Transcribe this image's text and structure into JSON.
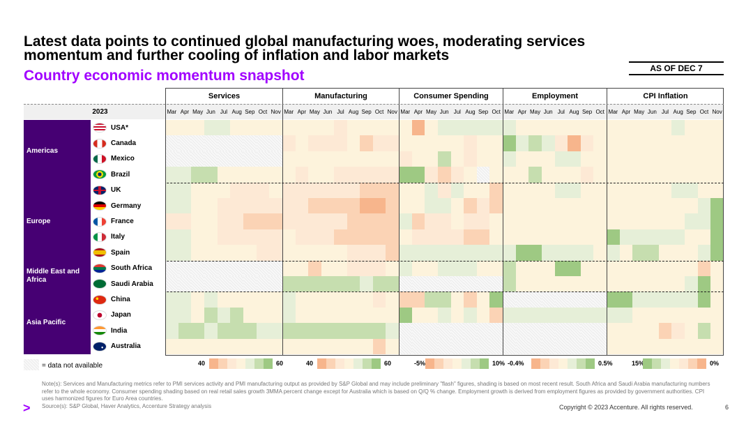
{
  "title": "Latest data points to continued global manufacturing woes, moderating services momentum and further cooling of inflation and labor markets",
  "subtitle": "Country economic momentum snapshot",
  "as_of": "AS OF DEC 7",
  "year_label": "2023",
  "sections": [
    {
      "name": "Services",
      "months": [
        "Mar",
        "Apr",
        "May",
        "Jun",
        "Jul",
        "Aug",
        "Sep",
        "Oct",
        "Nov"
      ]
    },
    {
      "name": "Manufacturing",
      "months": [
        "Mar",
        "Apr",
        "May",
        "Jun",
        "Jul",
        "Aug",
        "Sep",
        "Oct",
        "Nov"
      ]
    },
    {
      "name": "Consumer Spending",
      "months": [
        "Mar",
        "Apr",
        "May",
        "Jun",
        "Jul",
        "Aug",
        "Sep",
        "Oct"
      ]
    },
    {
      "name": "Employment",
      "months": [
        "Mar",
        "Apr",
        "May",
        "Jun",
        "Jul",
        "Aug",
        "Sep",
        "Oct"
      ]
    },
    {
      "name": "CPI Inflation",
      "months": [
        "Mar",
        "Apr",
        "May",
        "Jun",
        "Jul",
        "Aug",
        "Sep",
        "Oct",
        "Nov"
      ]
    }
  ],
  "regions": [
    {
      "name": "Americas",
      "rows": 4
    },
    {
      "name": "Europe",
      "rows": 5
    },
    {
      "name": "Middle East and Africa",
      "rows": 2
    },
    {
      "name": "Asia Pacific",
      "rows": 4
    }
  ],
  "countries": [
    {
      "name": "USA*",
      "flag": "us-flag-icon"
    },
    {
      "name": "Canada",
      "flag": "canada-flag-icon"
    },
    {
      "name": "Mexico",
      "flag": "mexico-flag-icon"
    },
    {
      "name": "Brazil",
      "flag": "brazil-flag-icon"
    },
    {
      "name": "UK",
      "flag": "uk-flag-icon"
    },
    {
      "name": "Germany",
      "flag": "germany-flag-icon"
    },
    {
      "name": "France",
      "flag": "france-flag-icon"
    },
    {
      "name": "Italy",
      "flag": "italy-flag-icon"
    },
    {
      "name": "Spain",
      "flag": "spain-flag-icon"
    },
    {
      "name": "South Africa",
      "flag": "south-africa-flag-icon"
    },
    {
      "name": "Saudi Arabia",
      "flag": "saudi-arabia-flag-icon"
    },
    {
      "name": "China",
      "flag": "china-flag-icon"
    },
    {
      "name": "Japan",
      "flag": "japan-flag-icon"
    },
    {
      "name": "India",
      "flag": "india-flag-icon"
    },
    {
      "name": "Australia",
      "flag": "australia-flag-icon"
    }
  ],
  "palette": {
    "region_bg": "#460073",
    "accent": "#a100ff",
    "scale": [
      "#f7b58c",
      "#fbd3b5",
      "#fde9d5",
      "#fdf3dc",
      "#e6efd8",
      "#c6deaf",
      "#9ec983"
    ],
    "na": "#f3f3f3"
  },
  "heatmap": {
    "Services": [
      [
        3,
        3,
        3,
        4,
        4,
        3,
        3,
        3,
        3
      ],
      [
        9,
        9,
        9,
        9,
        9,
        9,
        9,
        9,
        9
      ],
      [
        9,
        9,
        9,
        9,
        9,
        9,
        9,
        9,
        9
      ],
      [
        4,
        4,
        5,
        5,
        3,
        3,
        3,
        3,
        3
      ],
      [
        4,
        4,
        3,
        3,
        3,
        2,
        2,
        2,
        3
      ],
      [
        4,
        4,
        3,
        3,
        2,
        2,
        2,
        2,
        2
      ],
      [
        2,
        2,
        3,
        3,
        2,
        2,
        1,
        1,
        1
      ],
      [
        4,
        4,
        3,
        3,
        2,
        2,
        2,
        2,
        2
      ],
      [
        4,
        4,
        3,
        3,
        3,
        3,
        3,
        2,
        2
      ],
      [
        9,
        9,
        9,
        9,
        9,
        9,
        9,
        9,
        9
      ],
      [
        9,
        9,
        9,
        9,
        9,
        9,
        9,
        9,
        9
      ],
      [
        4,
        4,
        3,
        4,
        3,
        3,
        3,
        3,
        3
      ],
      [
        4,
        4,
        3,
        5,
        4,
        5,
        3,
        3,
        3
      ],
      [
        4,
        5,
        5,
        4,
        5,
        5,
        5,
        4,
        4
      ],
      [
        3,
        3,
        3,
        3,
        3,
        3,
        3,
        3,
        3
      ]
    ],
    "Manufacturing": [
      [
        3,
        3,
        3,
        3,
        2,
        3,
        3,
        3,
        3
      ],
      [
        2,
        3,
        2,
        2,
        2,
        3,
        1,
        2,
        2
      ],
      [
        3,
        3,
        3,
        3,
        3,
        3,
        3,
        3,
        3
      ],
      [
        3,
        2,
        3,
        3,
        2,
        2,
        2,
        2,
        2
      ],
      [
        2,
        2,
        2,
        2,
        2,
        2,
        1,
        1,
        1
      ],
      [
        2,
        2,
        1,
        1,
        1,
        1,
        0,
        0,
        1
      ],
      [
        2,
        2,
        2,
        2,
        2,
        1,
        1,
        1,
        1
      ],
      [
        3,
        2,
        2,
        2,
        1,
        1,
        1,
        1,
        1
      ],
      [
        3,
        3,
        3,
        3,
        3,
        2,
        2,
        2,
        1
      ],
      [
        3,
        3,
        1,
        3,
        3,
        2,
        2,
        2,
        3
      ],
      [
        5,
        5,
        5,
        5,
        5,
        5,
        4,
        5,
        5
      ],
      [
        4,
        3,
        3,
        3,
        3,
        3,
        3,
        2,
        3
      ],
      [
        4,
        3,
        3,
        3,
        3,
        3,
        3,
        3,
        3
      ],
      [
        5,
        5,
        5,
        5,
        5,
        5,
        5,
        5,
        4
      ],
      [
        3,
        3,
        3,
        3,
        3,
        3,
        3,
        1,
        3
      ]
    ],
    "Consumer Spending": [
      [
        3,
        0,
        3,
        4,
        4,
        4,
        4,
        4
      ],
      [
        3,
        3,
        3,
        3,
        3,
        2,
        3,
        3
      ],
      [
        2,
        3,
        3,
        5,
        3,
        2,
        3,
        3
      ],
      [
        6,
        6,
        2,
        1,
        2,
        3,
        9,
        3
      ],
      [
        3,
        3,
        4,
        2,
        4,
        3,
        3,
        1
      ],
      [
        3,
        3,
        4,
        4,
        3,
        1,
        2,
        1
      ],
      [
        4,
        1,
        2,
        2,
        3,
        2,
        2,
        3
      ],
      [
        3,
        2,
        2,
        2,
        2,
        1,
        1,
        3
      ],
      [
        4,
        4,
        4,
        4,
        4,
        4,
        4,
        4
      ],
      [
        4,
        3,
        3,
        4,
        4,
        4,
        3,
        3
      ],
      [
        9,
        9,
        9,
        9,
        9,
        9,
        9,
        9
      ],
      [
        1,
        1,
        5,
        5,
        3,
        1,
        3,
        6
      ],
      [
        6,
        3,
        3,
        4,
        3,
        4,
        3,
        1
      ],
      [
        9,
        9,
        9,
        9,
        9,
        9,
        9,
        9
      ],
      [
        9,
        9,
        9,
        9,
        9,
        9,
        9,
        9
      ]
    ],
    "Employment": [
      [
        4,
        3,
        3,
        3,
        3,
        3,
        3,
        3
      ],
      [
        6,
        4,
        5,
        4,
        2,
        0,
        2,
        3
      ],
      [
        4,
        3,
        3,
        3,
        4,
        4,
        3,
        3
      ],
      [
        3,
        3,
        5,
        3,
        3,
        3,
        2,
        3
      ],
      [
        3,
        3,
        3,
        3,
        4,
        4,
        3,
        3
      ],
      [
        3,
        3,
        3,
        3,
        3,
        3,
        3,
        3
      ],
      [
        3,
        3,
        3,
        3,
        3,
        3,
        3,
        3
      ],
      [
        3,
        3,
        3,
        3,
        3,
        3,
        3,
        3
      ],
      [
        4,
        6,
        6,
        4,
        4,
        4,
        4,
        3
      ],
      [
        5,
        3,
        3,
        3,
        6,
        6,
        3,
        3
      ],
      [
        5,
        3,
        3,
        3,
        3,
        3,
        3,
        3
      ],
      [
        9,
        9,
        9,
        9,
        9,
        9,
        9,
        9
      ],
      [
        4,
        4,
        4,
        4,
        4,
        4,
        4,
        4
      ],
      [
        9,
        9,
        9,
        9,
        9,
        9,
        9,
        9
      ],
      [
        9,
        9,
        9,
        9,
        9,
        9,
        9,
        9
      ]
    ],
    "CPI Inflation": [
      [
        3,
        3,
        3,
        3,
        3,
        4,
        3,
        3,
        3
      ],
      [
        3,
        3,
        3,
        3,
        3,
        3,
        3,
        3,
        3
      ],
      [
        3,
        3,
        3,
        3,
        3,
        3,
        3,
        3,
        3
      ],
      [
        3,
        3,
        3,
        3,
        3,
        3,
        3,
        3,
        3
      ],
      [
        3,
        3,
        3,
        3,
        3,
        4,
        4,
        3,
        3
      ],
      [
        3,
        3,
        3,
        3,
        3,
        3,
        3,
        4,
        6
      ],
      [
        3,
        3,
        3,
        3,
        3,
        3,
        4,
        4,
        6
      ],
      [
        6,
        4,
        4,
        4,
        4,
        4,
        3,
        3,
        6
      ],
      [
        4,
        3,
        5,
        5,
        3,
        3,
        3,
        4,
        6
      ],
      [
        3,
        3,
        3,
        3,
        3,
        3,
        3,
        1,
        3
      ],
      [
        3,
        3,
        3,
        3,
        3,
        3,
        4,
        6,
        3
      ],
      [
        6,
        6,
        4,
        4,
        4,
        4,
        4,
        6,
        3
      ],
      [
        4,
        4,
        3,
        3,
        3,
        3,
        3,
        3,
        3
      ],
      [
        3,
        3,
        3,
        3,
        1,
        2,
        3,
        5,
        3
      ],
      [
        3,
        3,
        3,
        3,
        3,
        3,
        3,
        3,
        3
      ]
    ]
  },
  "legends": [
    {
      "low": "40",
      "high": "60"
    },
    {
      "low": "40",
      "high": "60"
    },
    {
      "low": "-5%",
      "high": "10%"
    },
    {
      "low": "-0.4%",
      "high": "0.5%"
    },
    {
      "low": "15%",
      "high": "0%"
    }
  ],
  "na_label": "= data not available",
  "notes": "Note(s): Services and Manufacturing metrics refer to PMI services activity and PMI manufacturing output as provided by S&P Global and may include preliminary \"flash\" figures, shading is based on most recent result. South Africa and Saudi Arabia manufacturing numbers refer to the whole economy. Consumer spending shading based on real retail sales growth 3MMA percent change except for Australia which is based on Q/Q % change. Employment growth is derived from employment figures as provided by government authorities. CPI uses harmonized figures for Euro Area countries.",
  "sources": "Source(s): S&P Global, Haver Analytics, Accenture Strategy analysis",
  "logo": ">",
  "copyright": "Copyright © 2023 Accenture. All rights reserved.",
  "page_number": "6"
}
